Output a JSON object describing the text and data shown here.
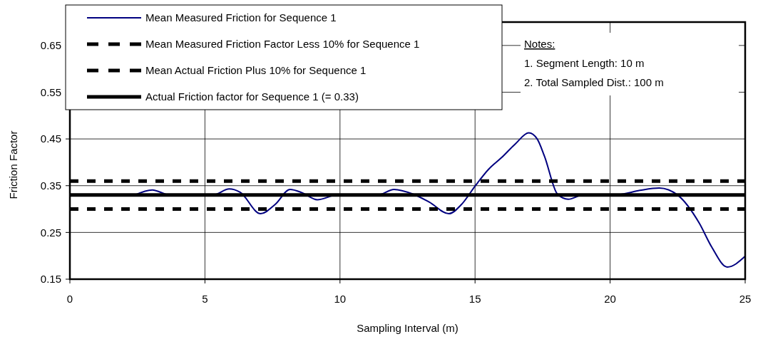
{
  "chart_data": {
    "type": "line",
    "xlabel": "Sampling Interval (m)",
    "ylabel": "Friction Factor",
    "xlim": [
      0,
      25
    ],
    "xticks": [
      0,
      5,
      10,
      15,
      20,
      25
    ],
    "ylim": [
      0.15,
      0.7
    ],
    "yticks": [
      0.15,
      0.25,
      0.35,
      0.45,
      0.55,
      0.65
    ],
    "grid": true,
    "legend": "top left",
    "marker": "none",
    "series": [
      {
        "name": "Mean Measured Friction for Sequence 1",
        "color": "#000080",
        "line_style": "solid",
        "x": [
          2.4,
          3.05,
          3.7,
          5.3,
          5.9,
          6.3,
          7.06,
          7.6,
          8.15,
          8.6,
          9.16,
          9.9,
          11.4,
          12,
          12.7,
          13.3,
          14.03,
          14.5,
          15,
          15.5,
          15.98,
          16.5,
          16.99,
          17.3,
          17.57,
          18.05,
          18.45,
          18.98,
          20.3,
          21.1,
          21.82,
          22.5,
          23.3,
          23.76,
          24.34,
          25
        ],
        "values": [
          0.33,
          0.341,
          0.33,
          0.33,
          0.343,
          0.336,
          0.29,
          0.31,
          0.342,
          0.335,
          0.32,
          0.33,
          0.33,
          0.342,
          0.332,
          0.315,
          0.29,
          0.31,
          0.349,
          0.385,
          0.41,
          0.44,
          0.463,
          0.45,
          0.413,
          0.332,
          0.321,
          0.33,
          0.331,
          0.34,
          0.345,
          0.33,
          0.27,
          0.219,
          0.176,
          0.199
        ]
      },
      {
        "name": "Mean Measured Friction Factor Less 10% for Sequence 1",
        "color": "#000000",
        "line_style": "dashed",
        "x": [
          0,
          25
        ],
        "values": [
          0.3,
          0.3
        ]
      },
      {
        "name": "Mean Actual Friction Plus 10% for Sequence 1",
        "color": "#000000",
        "line_style": "dashed",
        "x": [
          0,
          25
        ],
        "values": [
          0.36,
          0.36
        ]
      },
      {
        "name": "Actual Friction factor for Sequence 1 (= 0.33)",
        "color": "#000000",
        "line_style": "solid",
        "x": [
          0,
          25
        ],
        "values": [
          0.33,
          0.33
        ]
      }
    ],
    "annotations": [
      "Notes:",
      "1. Segment Length: 10 m",
      "2. Total Sampled Dist.: 100 m"
    ]
  }
}
